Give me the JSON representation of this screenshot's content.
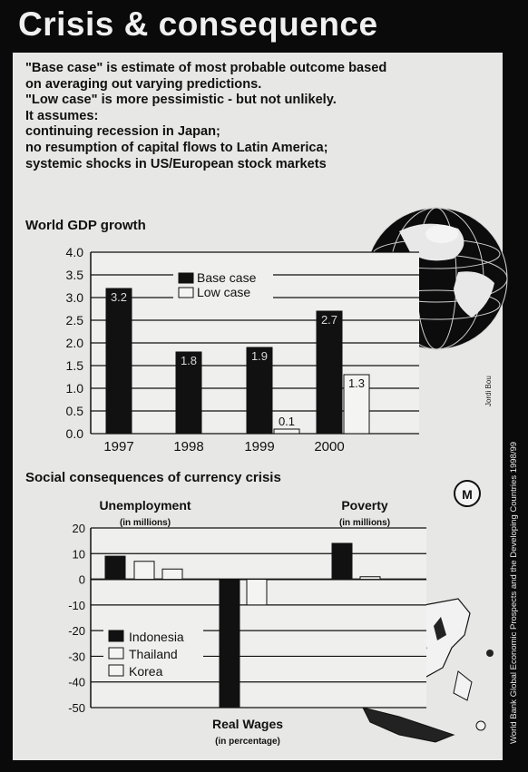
{
  "title": "Crisis & consequence",
  "intro": [
    "\"Base case\" is estimate of most probable outcome based",
    "on averaging out varying predictions.",
    "\"Low case\" is more pessimistic - but not unlikely.",
    "It assumes:",
    "continuing recession in Japan;",
    "no resumption of capital flows to Latin America;",
    "systemic shocks in US/European stock markets"
  ],
  "source_credit": "World Bank Global Economic Prospects and the Developing Countries 1998/99",
  "artist_credit": "Jordi Bou",
  "colors": {
    "background": "#0a0a0a",
    "panel": "#e7e7e5",
    "bar_dark": "#111111",
    "bar_light": "#f4f4f2",
    "grid": "#111111"
  },
  "chart_data": [
    {
      "type": "bar",
      "title": "World GDP growth",
      "categories": [
        "1997",
        "1998",
        "1999",
        "2000"
      ],
      "series": [
        {
          "name": "Base case",
          "values": [
            3.2,
            1.8,
            1.9,
            2.7
          ],
          "labels": [
            "3.2",
            "1.8",
            "1.9",
            "2.7"
          ]
        },
        {
          "name": "Low case",
          "values": [
            null,
            null,
            0.1,
            1.3
          ],
          "labels": [
            "",
            "",
            "0.1",
            "1.3"
          ]
        }
      ],
      "yticks": [
        "4.0",
        "3.5",
        "3.0",
        "2.5",
        "2.0",
        "1.5",
        "1.0",
        "0.5",
        "0.0"
      ],
      "ylim": [
        0,
        4
      ],
      "grid": true,
      "legend": "top-center"
    },
    {
      "type": "bar",
      "title": "Social consequences of currency crisis",
      "groups": [
        {
          "label": "Unemployment",
          "sublabel": "(in millions)"
        },
        {
          "label": "Real Wages",
          "sublabel": "(in percentage)"
        },
        {
          "label": "Poverty",
          "sublabel": "(in millions)"
        }
      ],
      "series": [
        {
          "name": "Indonesia",
          "values": [
            9,
            -50,
            14
          ]
        },
        {
          "name": "Thailand",
          "values": [
            7,
            -10,
            1
          ]
        },
        {
          "name": "Korea",
          "values": [
            4,
            null,
            null
          ]
        }
      ],
      "yticks": [
        "20",
        "10",
        "0",
        "-10",
        "-20",
        "-30",
        "-40",
        "-50"
      ],
      "ylim": [
        -50,
        20
      ],
      "grid": true,
      "legend": "bottom-left"
    }
  ]
}
